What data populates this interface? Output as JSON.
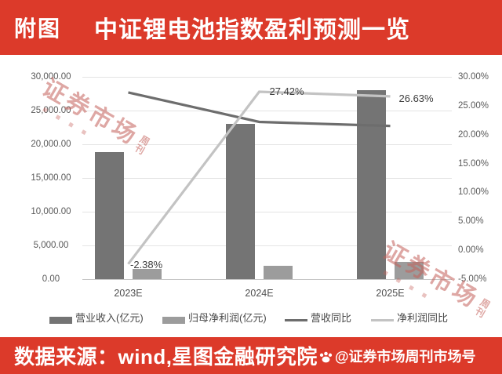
{
  "header": {
    "prefix": "附图",
    "title": "中证锂电池指数盈利预测一览"
  },
  "footer": {
    "source": "数据来源：wind,星图金融研究院",
    "handle": "@证券市场周刊市场号",
    "icon": "paw-icon"
  },
  "watermark": {
    "main": "证券市场",
    "sub_top": "周",
    "sub_bottom": "刊"
  },
  "chart_data": {
    "type": "combo",
    "categories": [
      "2023E",
      "2024E",
      "2025E"
    ],
    "series": [
      {
        "key": "revenue",
        "name": "营业收入(亿元)",
        "type": "bar",
        "axis": "left",
        "color": "#747474",
        "values": [
          18850,
          23000,
          28000
        ]
      },
      {
        "key": "net_profit",
        "name": "归母净利润(亿元)",
        "type": "bar",
        "axis": "left",
        "color": "#9c9c9c",
        "values": [
          1500,
          2000,
          2550
        ]
      },
      {
        "key": "revenue_yoy",
        "name": "营收同比",
        "type": "line",
        "axis": "right",
        "color": "#6d6d6d",
        "values": [
          27.3,
          22.2,
          21.5
        ],
        "labels": [
          "",
          "",
          ""
        ]
      },
      {
        "key": "net_profit_yoy",
        "name": "净利润同比",
        "type": "line",
        "axis": "right",
        "color": "#c3c3c3",
        "values": [
          -2.38,
          27.42,
          26.63
        ],
        "labels": [
          "-2.38%",
          "27.42%",
          "26.63%"
        ]
      }
    ],
    "left_axis": {
      "min": 0,
      "max": 30000,
      "ticks": [
        "30,000.00",
        "25,000.00",
        "20,000.00",
        "15,000.00",
        "10,000.00",
        "5,000.00",
        "0.00"
      ]
    },
    "right_axis": {
      "min": -5,
      "max": 30,
      "ticks": [
        "30.00%",
        "25.00%",
        "20.00%",
        "15.00%",
        "10.00%",
        "5.00%",
        "0.00%",
        "-5.00%"
      ]
    },
    "grid": true,
    "legend_position": "bottom"
  },
  "colors": {
    "banner": "#dc3a2a",
    "grid": "#e4e4e4",
    "axis_line": "#c6c6c6",
    "axis_text": "#5a5a5a",
    "data_label_text": "#3d3d3d",
    "watermark": "#c4615a"
  }
}
